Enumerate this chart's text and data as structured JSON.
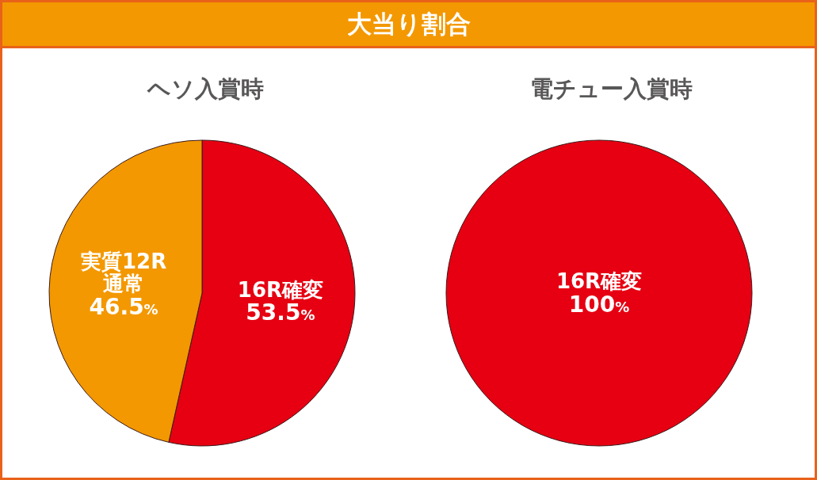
{
  "chart_data": [
    {
      "type": "other",
      "title": "大当り割合"
    },
    {
      "type": "pie",
      "title": "ヘソ入賞時",
      "categories": [
        "16R確変",
        "実質12R\n通常"
      ],
      "values": [
        53.5,
        46.5
      ],
      "colors": [
        "#e60012",
        "#f39800"
      ],
      "value_labels": [
        "53.5%",
        "46.5%"
      ]
    },
    {
      "type": "pie",
      "title": "電チュー入賞時",
      "categories": [
        "16R確変"
      ],
      "values": [
        100
      ],
      "colors": [
        "#e60012"
      ],
      "value_labels": [
        "100%"
      ]
    }
  ]
}
